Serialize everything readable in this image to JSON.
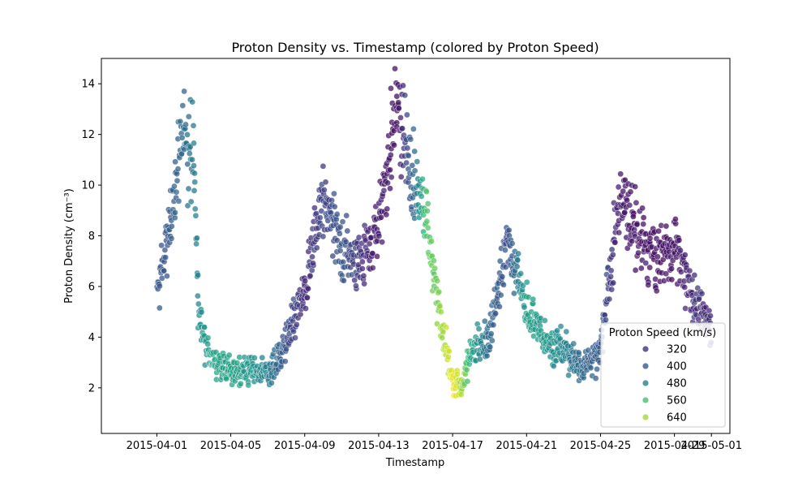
{
  "chart_data": {
    "type": "scatter",
    "title": "Proton Density vs. Timestamp (colored by Proton Speed)",
    "xlabel": "Timestamp",
    "ylabel": "Proton Density (cm⁻³)",
    "xlim": [
      "2015-03-29",
      "2015-05-02"
    ],
    "ylim": [
      0.2,
      15
    ],
    "x_ticks": [
      "2015-04-01",
      "2015-04-05",
      "2015-04-09",
      "2015-04-13",
      "2015-04-17",
      "2015-04-21",
      "2015-04-25",
      "2015-04-29",
      "2015-05-01"
    ],
    "y_ticks": [
      2,
      4,
      6,
      8,
      10,
      12,
      14
    ],
    "grid": false,
    "legend": {
      "title": "Proton Speed (km/s)",
      "placement": "lower right",
      "entries": [
        {
          "label": "320",
          "color": "#46327e"
        },
        {
          "label": "400",
          "color": "#365c8d"
        },
        {
          "label": "480",
          "color": "#277f8e"
        },
        {
          "label": "560",
          "color": "#4ac16d"
        },
        {
          "label": "640",
          "color": "#a0da39"
        }
      ]
    },
    "color_scale": {
      "min_speed": 280,
      "max_speed": 700,
      "colormap": "viridis"
    },
    "trend": [
      {
        "date": "2015-04-01",
        "density": 5.5,
        "speed": 400
      },
      {
        "date": "2015-04-01T12:00",
        "density": 7.5,
        "speed": 395
      },
      {
        "date": "2015-04-02",
        "density": 10.0,
        "speed": 410
      },
      {
        "date": "2015-04-02T12:00",
        "density": 12.5,
        "speed": 425
      },
      {
        "date": "2015-04-03",
        "density": 11.0,
        "speed": 455
      },
      {
        "date": "2015-04-03T06:00",
        "density": 5.0,
        "speed": 480
      },
      {
        "date": "2015-04-04",
        "density": 3.0,
        "speed": 520
      },
      {
        "date": "2015-04-05",
        "density": 2.8,
        "speed": 520
      },
      {
        "date": "2015-04-06",
        "density": 2.6,
        "speed": 500
      },
      {
        "date": "2015-04-07",
        "density": 2.5,
        "speed": 460
      },
      {
        "date": "2015-04-08",
        "density": 3.8,
        "speed": 380
      },
      {
        "date": "2015-04-09",
        "density": 6.0,
        "speed": 345
      },
      {
        "date": "2015-04-10",
        "density": 9.5,
        "speed": 370
      },
      {
        "date": "2015-04-11",
        "density": 7.5,
        "speed": 390
      },
      {
        "date": "2015-04-12",
        "density": 7.0,
        "speed": 350
      },
      {
        "date": "2015-04-13",
        "density": 8.5,
        "speed": 320
      },
      {
        "date": "2015-04-14",
        "density": 13.0,
        "speed": 305
      },
      {
        "date": "2015-04-15",
        "density": 10.0,
        "speed": 440
      },
      {
        "date": "2015-04-15T12:00",
        "density": 9.0,
        "speed": 580
      },
      {
        "date": "2015-04-16",
        "density": 6.5,
        "speed": 600
      },
      {
        "date": "2015-04-16T12:00",
        "density": 4.0,
        "speed": 640
      },
      {
        "date": "2015-04-17",
        "density": 2.2,
        "speed": 690
      },
      {
        "date": "2015-04-17T12:00",
        "density": 2.0,
        "speed": 650
      },
      {
        "date": "2015-04-18",
        "density": 3.5,
        "speed": 520
      },
      {
        "date": "2015-04-19",
        "density": 4.0,
        "speed": 420
      },
      {
        "date": "2015-04-20",
        "density": 8.0,
        "speed": 380
      },
      {
        "date": "2015-04-21",
        "density": 5.0,
        "speed": 520
      },
      {
        "date": "2015-04-22",
        "density": 4.0,
        "speed": 500
      },
      {
        "date": "2015-04-23",
        "density": 3.5,
        "speed": 470
      },
      {
        "date": "2015-04-24",
        "density": 2.8,
        "speed": 420
      },
      {
        "date": "2015-04-25",
        "density": 3.5,
        "speed": 400
      },
      {
        "date": "2015-04-26",
        "density": 9.5,
        "speed": 320
      },
      {
        "date": "2015-04-27",
        "density": 8.0,
        "speed": 310
      },
      {
        "date": "2015-04-28",
        "density": 7.0,
        "speed": 305
      },
      {
        "date": "2015-04-29",
        "density": 7.5,
        "speed": 310
      },
      {
        "date": "2015-04-30",
        "density": 5.5,
        "speed": 350
      },
      {
        "date": "2015-05-01",
        "density": 4.5,
        "speed": 340
      }
    ]
  }
}
